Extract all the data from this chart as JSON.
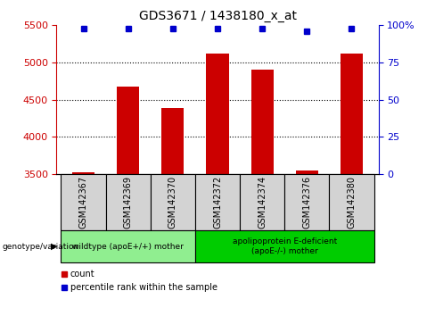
{
  "title": "GDS3671 / 1438180_x_at",
  "categories": [
    "GSM142367",
    "GSM142369",
    "GSM142370",
    "GSM142372",
    "GSM142374",
    "GSM142376",
    "GSM142380"
  ],
  "bar_values": [
    3520,
    4670,
    4380,
    5120,
    4900,
    3540,
    5120
  ],
  "percentile_values": [
    98,
    98,
    98,
    98,
    98,
    96,
    98
  ],
  "bar_color": "#cc0000",
  "percentile_color": "#0000cc",
  "ylim_left": [
    3500,
    5500
  ],
  "ylim_right": [
    0,
    100
  ],
  "yticks_left": [
    3500,
    4000,
    4500,
    5000,
    5500
  ],
  "yticks_right": [
    0,
    25,
    50,
    75,
    100
  ],
  "ytick_labels_right": [
    "0",
    "25",
    "50",
    "75",
    "100%"
  ],
  "grid_values": [
    4000,
    4500,
    5000
  ],
  "group1_label": "wildtype (apoE+/+) mother",
  "group2_label": "apolipoprotein E-deficient\n(apoE-/-) mother",
  "group1_indices": [
    0,
    1,
    2
  ],
  "group2_indices": [
    3,
    4,
    5,
    6
  ],
  "xlabel_left": "genotype/variation",
  "legend_count_label": "count",
  "legend_percentile_label": "percentile rank within the sample",
  "bg_group1": "#90ee90",
  "bg_group2": "#00cc00",
  "title_color": "#000000",
  "left_tick_color": "#cc0000",
  "right_tick_color": "#0000cc",
  "bar_width": 0.5
}
